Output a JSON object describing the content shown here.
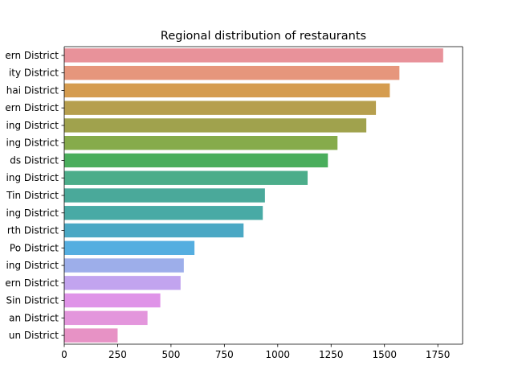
{
  "chart_data": {
    "type": "bar",
    "orientation": "horizontal",
    "title": "Regional distribution of restaurants",
    "xlabel": "",
    "ylabel": "",
    "xlim": [
      0,
      1866
    ],
    "xticks": [
      0,
      250,
      500,
      750,
      1000,
      1250,
      1500,
      1750
    ],
    "grid": false,
    "categories": [
      "ern District",
      "ity District",
      "hai District",
      "ern District",
      "ing District",
      "ing District",
      "ds District",
      "ing District",
      "Tin District",
      "ing District",
      "rth District",
      "Po District",
      "ing District",
      "ern District",
      "Sin District",
      "an District",
      "un District"
    ],
    "values": [
      1775,
      1570,
      1525,
      1460,
      1415,
      1280,
      1235,
      1140,
      940,
      930,
      840,
      610,
      560,
      545,
      450,
      390,
      250
    ],
    "colors": [
      "#e8929a",
      "#e6967c",
      "#d59c4f",
      "#b69f4e",
      "#a0a24d",
      "#86ab4b",
      "#4aae5c",
      "#4cad8a",
      "#4aa99a",
      "#48aaa5",
      "#4aa8c4",
      "#55aee0",
      "#9daeea",
      "#c2a4ef",
      "#df93e8",
      "#e396dc",
      "#e792c5"
    ]
  }
}
